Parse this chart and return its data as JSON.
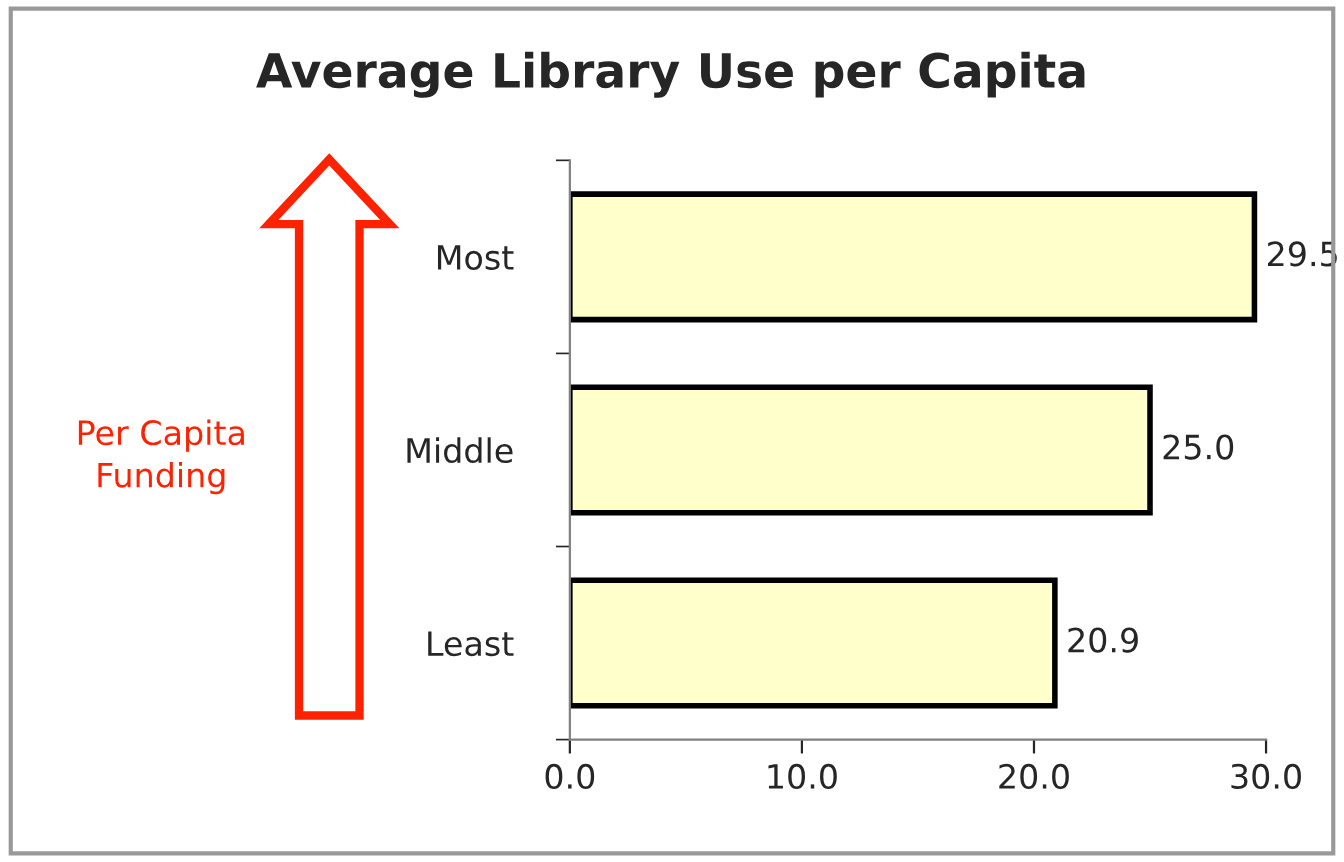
{
  "chart_data": {
    "type": "bar",
    "orientation": "horizontal",
    "title": "Average Library Use per Capita",
    "categories": [
      "Most",
      "Middle",
      "Least"
    ],
    "values": [
      29.5,
      25.0,
      20.9
    ],
    "value_labels": [
      "29.5",
      "25.0",
      "20.9"
    ],
    "color": "#ffffcc",
    "xlim": [
      0,
      30
    ],
    "xticks": [
      {
        "value": 0,
        "label": "0.0"
      },
      {
        "value": 10,
        "label": "10.0"
      },
      {
        "value": 20,
        "label": "20.0"
      },
      {
        "value": 30,
        "label": "30.0"
      }
    ],
    "grid": false,
    "legend": false,
    "annotations": [
      "Per Capita\nFunding"
    ]
  }
}
